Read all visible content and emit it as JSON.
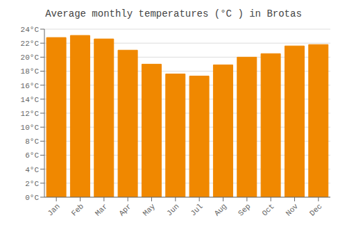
{
  "chart_data": {
    "type": "bar",
    "title": "Average monthly temperatures (°C ) in Brotas",
    "categories": [
      "Jan",
      "Feb",
      "Mar",
      "Apr",
      "May",
      "Jun",
      "Jul",
      "Aug",
      "Sep",
      "Oct",
      "Nov",
      "Dec"
    ],
    "values": [
      22.8,
      23.1,
      22.6,
      21.0,
      19.0,
      17.6,
      17.3,
      18.9,
      20.0,
      20.5,
      21.6,
      21.8
    ],
    "color": "#F08800",
    "ylim": [
      0,
      24
    ],
    "yticks": [
      {
        "value": 0,
        "label": "0°C"
      },
      {
        "value": 2,
        "label": "2°C"
      },
      {
        "value": 4,
        "label": "4°C"
      },
      {
        "value": 6,
        "label": "6°C"
      },
      {
        "value": 8,
        "label": "8°C"
      },
      {
        "value": 10,
        "label": "10°C"
      },
      {
        "value": 12,
        "label": "12°C"
      },
      {
        "value": 14,
        "label": "14°C"
      },
      {
        "value": 16,
        "label": "16°C"
      },
      {
        "value": 18,
        "label": "18°C"
      },
      {
        "value": 20,
        "label": "20°C"
      },
      {
        "value": 22,
        "label": "22°C"
      },
      {
        "value": 24,
        "label": "24°C"
      }
    ],
    "grid": true
  }
}
